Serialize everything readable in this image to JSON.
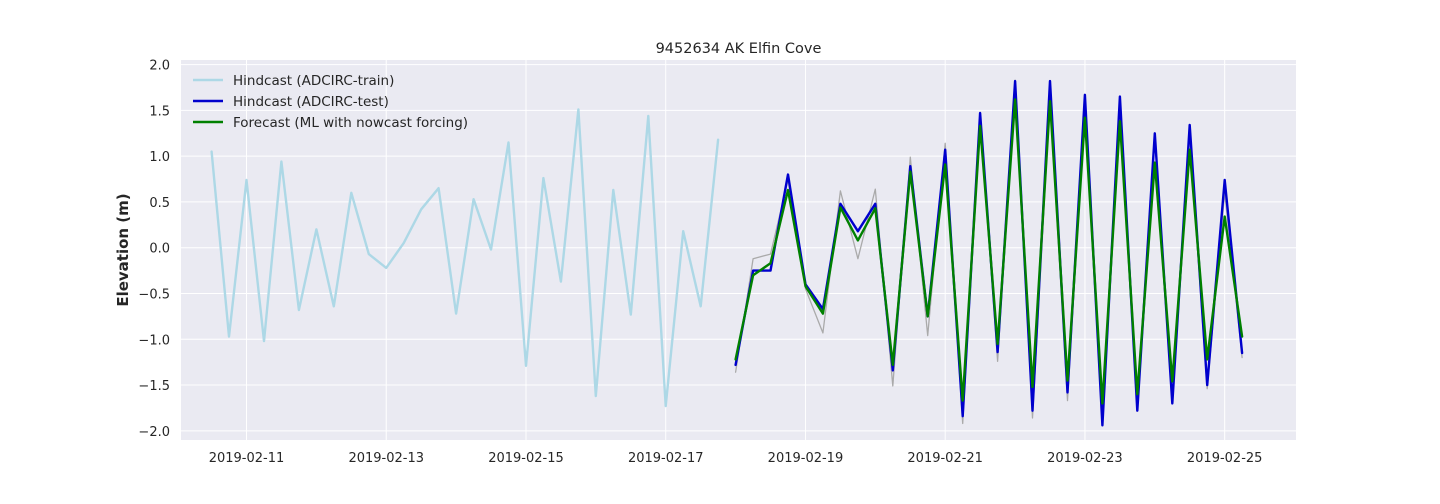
{
  "chart_data": {
    "type": "line",
    "title": "9452634 AK Elfin Cove",
    "xlabel": "",
    "ylabel": "Elevation (m)",
    "x_unit": "date",
    "xlim": [
      "2019-02-10T01:30",
      "2019-02-26T00:30"
    ],
    "ylim": [
      -2.1,
      2.05
    ],
    "yticks": [
      2.0,
      1.5,
      1.0,
      0.5,
      0.0,
      -0.5,
      -1.0,
      -1.5,
      -2.0
    ],
    "ytick_labels": [
      "2.0",
      "1.5",
      "1.0",
      "0.5",
      "0.0",
      "−0.5",
      "−1.0",
      "−1.5",
      "−2.0"
    ],
    "xticks": [
      "2019-02-11",
      "2019-02-13",
      "2019-02-15",
      "2019-02-17",
      "2019-02-19",
      "2019-02-21",
      "2019-02-23",
      "2019-02-25"
    ],
    "grid": true,
    "legend_position": "top-left",
    "series": [
      {
        "name": "Hindcast (ADCIRC-train)",
        "color": "#add8e6",
        "in_legend": true,
        "x": [
          "2019-02-10T12:00",
          "2019-02-10T18:00",
          "2019-02-11T00:00",
          "2019-02-11T06:00",
          "2019-02-11T12:00",
          "2019-02-11T18:00",
          "2019-02-12T00:00",
          "2019-02-12T06:00",
          "2019-02-12T12:00",
          "2019-02-12T18:00",
          "2019-02-13T00:00",
          "2019-02-13T06:00",
          "2019-02-13T12:00",
          "2019-02-13T18:00",
          "2019-02-14T00:00",
          "2019-02-14T06:00",
          "2019-02-14T12:00",
          "2019-02-14T18:00",
          "2019-02-15T00:00",
          "2019-02-15T06:00",
          "2019-02-15T12:00",
          "2019-02-15T18:00",
          "2019-02-16T00:00",
          "2019-02-16T06:00",
          "2019-02-16T12:00",
          "2019-02-16T18:00",
          "2019-02-17T00:00",
          "2019-02-17T06:00",
          "2019-02-17T12:00",
          "2019-02-17T18:00"
        ],
        "y": [
          1.05,
          -0.97,
          0.74,
          -1.02,
          0.94,
          -0.68,
          0.2,
          -0.64,
          0.6,
          -0.07,
          -0.22,
          0.05,
          0.42,
          0.65,
          -0.72,
          0.53,
          -0.02,
          1.15,
          -1.29,
          0.76,
          -0.37,
          1.51,
          -1.62,
          0.63,
          -0.73,
          1.44,
          -1.73,
          0.18,
          -0.64,
          1.18
        ]
      },
      {
        "name": "Observation",
        "color": "#aaaaaa",
        "in_legend": false,
        "x": [
          "2019-02-18T00:00",
          "2019-02-18T06:00",
          "2019-02-18T12:00",
          "2019-02-18T18:00",
          "2019-02-19T00:00",
          "2019-02-19T06:00",
          "2019-02-19T12:00",
          "2019-02-19T18:00",
          "2019-02-20T00:00",
          "2019-02-20T06:00",
          "2019-02-20T12:00",
          "2019-02-20T18:00",
          "2019-02-21T00:00",
          "2019-02-21T06:00",
          "2019-02-21T12:00",
          "2019-02-21T18:00",
          "2019-02-22T00:00",
          "2019-02-22T06:00",
          "2019-02-22T12:00",
          "2019-02-22T18:00",
          "2019-02-23T00:00",
          "2019-02-23T06:00",
          "2019-02-23T12:00",
          "2019-02-23T18:00",
          "2019-02-24T00:00",
          "2019-02-24T06:00",
          "2019-02-24T12:00",
          "2019-02-24T18:00",
          "2019-02-25T00:00",
          "2019-02-25T06:00"
        ],
        "y": [
          -1.36,
          -0.12,
          -0.07,
          0.74,
          -0.45,
          -0.93,
          0.62,
          -0.12,
          0.64,
          -1.51,
          0.99,
          -0.96,
          1.14,
          -1.92,
          1.48,
          -1.24,
          1.83,
          -1.86,
          1.62,
          -1.67,
          1.54,
          -1.85,
          1.54,
          -1.69,
          1.18,
          -1.66,
          1.21,
          -1.54,
          0.6,
          -1.2
        ]
      },
      {
        "name": "Hindcast (ADCIRC-test)",
        "color": "#0000cd",
        "in_legend": true,
        "x": [
          "2019-02-18T00:00",
          "2019-02-18T06:00",
          "2019-02-18T12:00",
          "2019-02-18T18:00",
          "2019-02-19T00:00",
          "2019-02-19T06:00",
          "2019-02-19T12:00",
          "2019-02-19T18:00",
          "2019-02-20T00:00",
          "2019-02-20T06:00",
          "2019-02-20T12:00",
          "2019-02-20T18:00",
          "2019-02-21T00:00",
          "2019-02-21T06:00",
          "2019-02-21T12:00",
          "2019-02-21T18:00",
          "2019-02-22T00:00",
          "2019-02-22T06:00",
          "2019-02-22T12:00",
          "2019-02-22T18:00",
          "2019-02-23T00:00",
          "2019-02-23T06:00",
          "2019-02-23T12:00",
          "2019-02-23T18:00",
          "2019-02-24T00:00",
          "2019-02-24T06:00",
          "2019-02-24T12:00",
          "2019-02-24T18:00",
          "2019-02-25T00:00",
          "2019-02-25T06:00"
        ],
        "y": [
          -1.28,
          -0.25,
          -0.25,
          0.8,
          -0.4,
          -0.67,
          0.48,
          0.18,
          0.48,
          -1.34,
          0.89,
          -0.75,
          1.07,
          -1.84,
          1.47,
          -1.14,
          1.82,
          -1.78,
          1.82,
          -1.58,
          1.67,
          -1.94,
          1.65,
          -1.78,
          1.25,
          -1.7,
          1.34,
          -1.5,
          0.74,
          -1.15
        ]
      },
      {
        "name": "Forecast (ML with nowcast forcing)",
        "color": "#008000",
        "in_legend": true,
        "x": [
          "2019-02-18T00:00",
          "2019-02-18T06:00",
          "2019-02-18T12:00",
          "2019-02-18T18:00",
          "2019-02-19T00:00",
          "2019-02-19T06:00",
          "2019-02-19T12:00",
          "2019-02-19T18:00",
          "2019-02-20T00:00",
          "2019-02-20T06:00",
          "2019-02-20T12:00",
          "2019-02-20T18:00",
          "2019-02-21T00:00",
          "2019-02-21T06:00",
          "2019-02-21T12:00",
          "2019-02-21T18:00",
          "2019-02-22T00:00",
          "2019-02-22T06:00",
          "2019-02-22T12:00",
          "2019-02-22T18:00",
          "2019-02-23T00:00",
          "2019-02-23T06:00",
          "2019-02-23T12:00",
          "2019-02-23T18:00",
          "2019-02-24T00:00",
          "2019-02-24T06:00",
          "2019-02-24T12:00",
          "2019-02-24T18:00",
          "2019-02-25T00:00",
          "2019-02-25T06:00"
        ],
        "y": [
          -1.22,
          -0.3,
          -0.17,
          0.63,
          -0.42,
          -0.72,
          0.44,
          0.08,
          0.43,
          -1.28,
          0.83,
          -0.75,
          0.91,
          -1.67,
          1.33,
          -1.05,
          1.62,
          -1.52,
          1.6,
          -1.45,
          1.42,
          -1.7,
          1.38,
          -1.6,
          0.93,
          -1.46,
          1.07,
          -1.22,
          0.34,
          -0.97
        ]
      }
    ]
  }
}
